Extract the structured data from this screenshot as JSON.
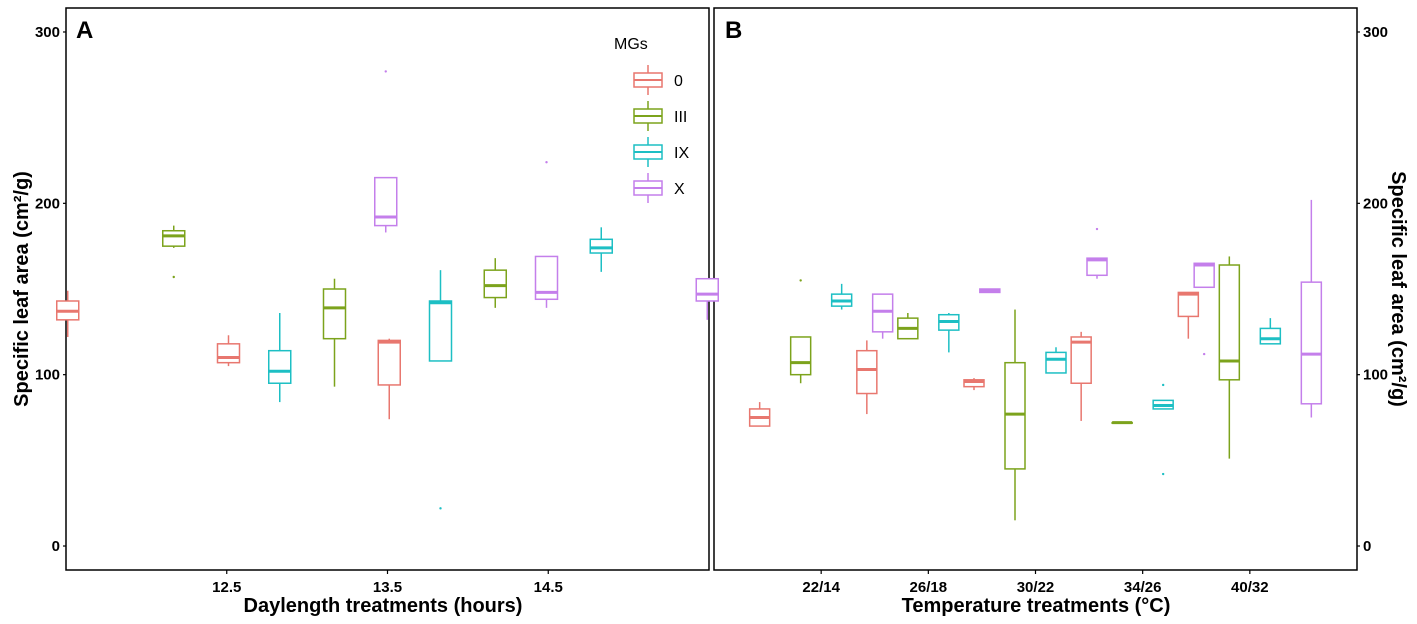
{
  "colors": {
    "0": "#E8776F",
    "III": "#7CA31C",
    "IX": "#1DBFC4",
    "X": "#C47FEB"
  },
  "legend": {
    "title": "MGs",
    "entries": [
      {
        "key": "0",
        "label": "0"
      },
      {
        "key": "III",
        "label": "III"
      },
      {
        "key": "IX",
        "label": "IX"
      },
      {
        "key": "X",
        "label": "X"
      }
    ]
  },
  "chart_data": [
    {
      "type": "box",
      "panel": "A",
      "xlabel": "Daylength treatments (hours)",
      "ylabel": "Specific leaf area (cm²/g)",
      "ylim": [
        -14,
        314
      ],
      "yticks": [
        "0",
        "100",
        "200",
        "300"
      ],
      "categories": [
        "12.5",
        "13.5",
        "14.5"
      ],
      "series": [
        {
          "name": "0",
          "boxes": [
            {
              "category": "12.5",
              "min": 122,
              "q1": 132,
              "median": 137,
              "q3": 143,
              "max": 149,
              "outliers": []
            },
            {
              "category": "13.5",
              "min": 105,
              "q1": 107,
              "median": 110,
              "q3": 118,
              "max": 123,
              "outliers": []
            },
            {
              "category": "14.5",
              "min": 74,
              "q1": 94,
              "median": 119,
              "q3": 120,
              "max": 121,
              "outliers": []
            }
          ]
        },
        {
          "name": "III",
          "boxes": [
            {
              "category": "12.5",
              "min": 174,
              "q1": 175,
              "median": 181,
              "q3": 184,
              "max": 187,
              "outliers": [
                157
              ]
            },
            {
              "category": "13.5",
              "min": 93,
              "q1": 121,
              "median": 139,
              "q3": 150,
              "max": 156,
              "outliers": []
            },
            {
              "category": "14.5",
              "min": 139,
              "q1": 145,
              "median": 152,
              "q3": 161,
              "max": 168,
              "outliers": []
            }
          ]
        },
        {
          "name": "IX",
          "boxes": [
            {
              "category": "12.5",
              "min": 84,
              "q1": 95,
              "median": 102,
              "q3": 114,
              "max": 136,
              "outliers": []
            },
            {
              "category": "13.5",
              "min": 108,
              "q1": 108,
              "median": 142,
              "q3": 143,
              "max": 161,
              "outliers": [
                22
              ]
            },
            {
              "category": "14.5",
              "min": 160,
              "q1": 171,
              "median": 174,
              "q3": 179,
              "max": 186,
              "outliers": []
            }
          ]
        },
        {
          "name": "X",
          "boxes": [
            {
              "category": "12.5",
              "min": 183,
              "q1": 187,
              "median": 192,
              "q3": 215,
              "max": 215,
              "outliers": [
                277
              ]
            },
            {
              "category": "13.5",
              "min": 139,
              "q1": 144,
              "median": 148,
              "q3": 169,
              "max": 169,
              "outliers": [
                224
              ]
            },
            {
              "category": "14.5",
              "min": 132,
              "q1": 143,
              "median": 147,
              "q3": 156,
              "max": 156,
              "outliers": []
            }
          ]
        }
      ]
    },
    {
      "type": "box",
      "panel": "B",
      "xlabel": "Temperature treatments (°C)",
      "ylabel": "Specific leaf area (cm²/g)",
      "ylim": [
        -14,
        314
      ],
      "yticks": [
        "0",
        "100",
        "200",
        "300"
      ],
      "categories": [
        "22/14",
        "26/18",
        "30/22",
        "34/26",
        "40/32"
      ],
      "series": [
        {
          "name": "0",
          "boxes": [
            {
              "category": "22/14",
              "min": 70,
              "q1": 70,
              "median": 75,
              "q3": 80,
              "max": 84,
              "outliers": []
            },
            {
              "category": "26/18",
              "min": 77,
              "q1": 89,
              "median": 103,
              "q3": 114,
              "max": 120,
              "outliers": []
            },
            {
              "category": "30/22",
              "min": 91,
              "q1": 93,
              "median": 96,
              "q3": 97,
              "max": 98,
              "outliers": []
            },
            {
              "category": "34/26",
              "min": 73,
              "q1": 95,
              "median": 119,
              "q3": 122,
              "max": 125,
              "outliers": []
            },
            {
              "category": "40/32",
              "min": 121,
              "q1": 134,
              "median": 147,
              "q3": 148,
              "max": 148,
              "outliers": []
            }
          ]
        },
        {
          "name": "III",
          "boxes": [
            {
              "category": "22/14",
              "min": 95,
              "q1": 100,
              "median": 107,
              "q3": 122,
              "max": 122,
              "outliers": [
                155
              ]
            },
            {
              "category": "26/18",
              "min": 121,
              "q1": 121,
              "median": 127,
              "q3": 133,
              "max": 136,
              "outliers": []
            },
            {
              "category": "30/22",
              "min": 15,
              "q1": 45,
              "median": 77,
              "q3": 107,
              "max": 138,
              "outliers": []
            },
            {
              "category": "34/26",
              "min": 72,
              "q1": 72,
              "median": 72,
              "q3": 72,
              "max": 72,
              "outliers": []
            },
            {
              "category": "40/32",
              "min": 51,
              "q1": 97,
              "median": 108,
              "q3": 164,
              "max": 169,
              "outliers": []
            }
          ]
        },
        {
          "name": "IX",
          "boxes": [
            {
              "category": "22/14",
              "min": 138,
              "q1": 140,
              "median": 143,
              "q3": 147,
              "max": 153,
              "outliers": []
            },
            {
              "category": "26/18",
              "min": 113,
              "q1": 126,
              "median": 131,
              "q3": 135,
              "max": 136,
              "outliers": []
            },
            {
              "category": "30/22",
              "min": 101,
              "q1": 101,
              "median": 109,
              "q3": 113,
              "max": 116,
              "outliers": []
            },
            {
              "category": "34/26",
              "min": 80,
              "q1": 80,
              "median": 82,
              "q3": 85,
              "max": 85,
              "outliers": [
                94,
                42
              ]
            },
            {
              "category": "40/32",
              "min": 118,
              "q1": 118,
              "median": 121,
              "q3": 127,
              "max": 133,
              "outliers": []
            }
          ]
        },
        {
          "name": "X",
          "boxes": [
            {
              "category": "22/14",
              "min": 121,
              "q1": 125,
              "median": 137,
              "q3": 147,
              "max": 147,
              "outliers": []
            },
            {
              "category": "26/18",
              "min": 148,
              "q1": 148,
              "median": 149,
              "q3": 150,
              "max": 150,
              "outliers": []
            },
            {
              "category": "30/22",
              "min": 156,
              "q1": 158,
              "median": 167,
              "q3": 168,
              "max": 168,
              "outliers": [
                185
              ]
            },
            {
              "category": "34/26",
              "min": 151,
              "q1": 151,
              "median": 164,
              "q3": 165,
              "max": 165,
              "outliers": [
                112
              ]
            },
            {
              "category": "40/32",
              "min": 75,
              "q1": 83,
              "median": 112,
              "q3": 154,
              "max": 202,
              "outliers": []
            }
          ]
        }
      ]
    }
  ]
}
